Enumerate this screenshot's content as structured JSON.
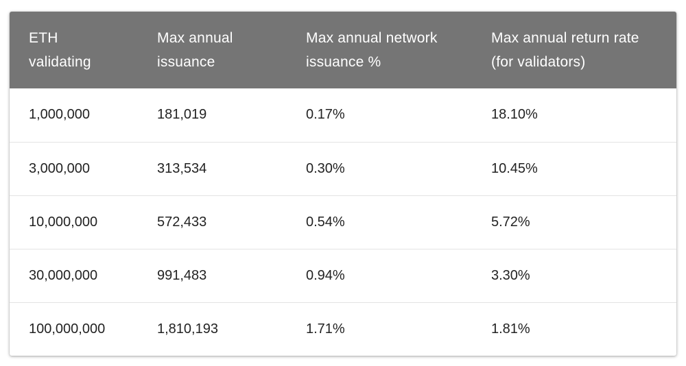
{
  "table": {
    "headers": [
      "ETH\nvalidating",
      "Max annual\nissuance",
      "Max annual network\nissuance %",
      "Max annual return rate\n(for validators)"
    ],
    "rows": [
      [
        "1,000,000",
        "181,019",
        "0.17%",
        "18.10%"
      ],
      [
        "3,000,000",
        "313,534",
        "0.30%",
        "10.45%"
      ],
      [
        "10,000,000",
        "572,433",
        "0.54%",
        "5.72%"
      ],
      [
        "30,000,000",
        "991,483",
        "0.94%",
        "3.30%"
      ],
      [
        "100,000,000",
        "1,810,193",
        "1.71%",
        "1.81%"
      ]
    ]
  }
}
